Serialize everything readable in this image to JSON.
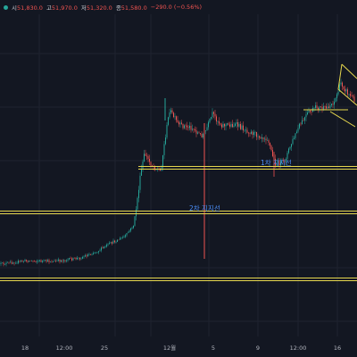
{
  "header": {
    "status_color": "#26a69a",
    "open_label": "시",
    "open_value": "51,830.0",
    "high_label": "고",
    "high_value": "51,970.0",
    "low_label": "저",
    "low_value": "51,320.0",
    "close_label": "종",
    "close_value": "51,580.0",
    "change_value": "−290.0 (−0.56%)"
  },
  "chart_data": {
    "type": "candlestick",
    "colors": {
      "up": "#26a69a",
      "down": "#ef5350",
      "line": "#e7d84e",
      "annotation": "#4c8ef7",
      "background": "#131722",
      "grid": "#1f2330"
    },
    "x_tick_labels": [
      "18",
      "12:00",
      "25",
      "12월",
      "5",
      "9",
      "12:00",
      "16"
    ],
    "grid": true,
    "horizontal_lines": [
      {
        "label": "1차 지지선"
      },
      {
        "label": "2차 지지선"
      },
      {
        "label": ""
      }
    ],
    "annotations": [
      {
        "text": "1차 지지선"
      },
      {
        "text": "2차 지지선"
      }
    ],
    "channel": {
      "shown": true,
      "location": "top-right"
    }
  }
}
